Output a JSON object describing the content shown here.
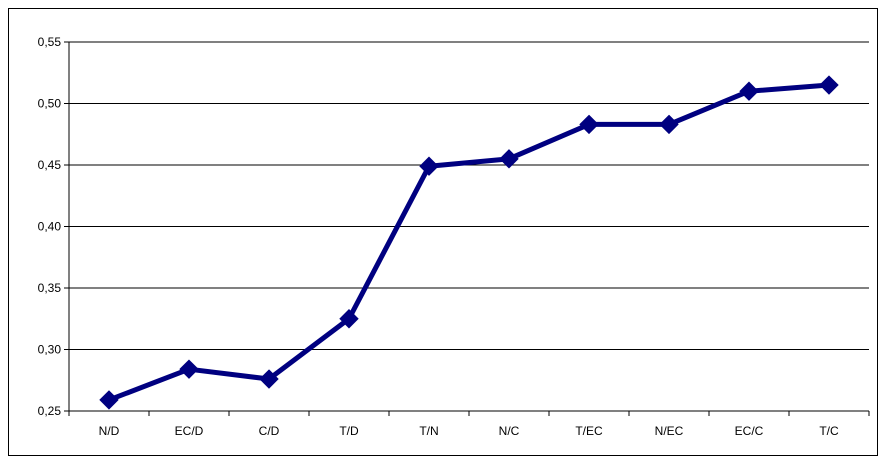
{
  "chart_data": {
    "type": "line",
    "title": "",
    "xlabel": "",
    "ylabel": "",
    "categories": [
      "N/D",
      "EC/D",
      "C/D",
      "T/D",
      "T/N",
      "N/C",
      "T/EC",
      "N/EC",
      "EC/C",
      "T/C"
    ],
    "series": [
      {
        "values": [
          0.259,
          0.284,
          0.276,
          0.325,
          0.449,
          0.455,
          0.483,
          0.483,
          0.51,
          0.515
        ],
        "color": "#000080",
        "marker": "diamond"
      }
    ],
    "ylim": [
      0.25,
      0.55
    ],
    "yticks": [
      "0,25",
      "0,30",
      "0,35",
      "0,40",
      "0,45",
      "0,50",
      "0,55"
    ],
    "grid": true,
    "legend": "none"
  }
}
